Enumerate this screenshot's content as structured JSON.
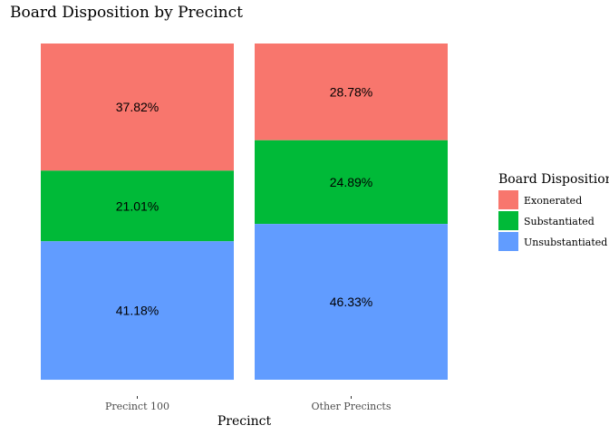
{
  "chart_data": {
    "type": "bar",
    "stacked": true,
    "title": "Board Disposition by Precinct",
    "xlabel": "Precinct",
    "ylabel": "",
    "ylim": [
      0,
      100
    ],
    "grid": false,
    "legend_position": "right",
    "legend_title": "Board Disposition",
    "categories": [
      "Precinct 100",
      "Other Precincts"
    ],
    "stack_order_top_to_bottom": [
      "Exonerated",
      "Substantiated",
      "Unsubstantiated"
    ],
    "series": [
      {
        "name": "Exonerated",
        "color": "#F8766D",
        "values": [
          37.82,
          28.78
        ],
        "labels": [
          "37.82%",
          "28.78%"
        ]
      },
      {
        "name": "Substantiated",
        "color": "#00BA38",
        "values": [
          21.01,
          24.89
        ],
        "labels": [
          "21.01%",
          "24.89%"
        ]
      },
      {
        "name": "Unsubstantiated",
        "color": "#619CFF",
        "values": [
          41.18,
          46.33
        ],
        "labels": [
          "41.18%",
          "46.33%"
        ]
      }
    ]
  }
}
